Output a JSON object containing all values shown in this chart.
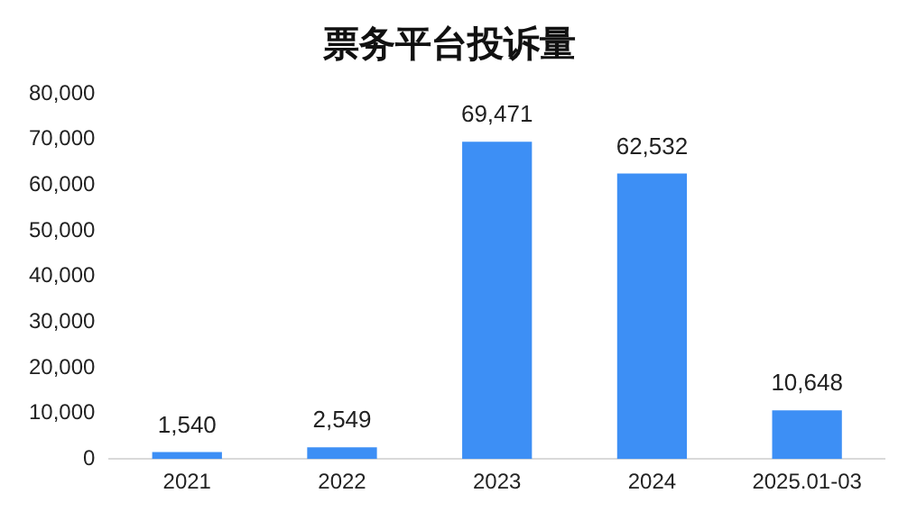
{
  "chart_data": {
    "type": "bar",
    "title": "票务平台投诉量",
    "categories": [
      "2021",
      "2022",
      "2023",
      "2024",
      "2025.01-03"
    ],
    "values": [
      1540,
      2549,
      69471,
      62532,
      10648
    ],
    "color": "#3d8ff5",
    "value_labels": [
      "1,540",
      "2,549",
      "69,471",
      "62,532",
      "10,648"
    ],
    "ylim": [
      0,
      80000
    ],
    "yticks": [
      0,
      {
        "value": 10000,
        "label": "10,000"
      },
      {
        "value": 20000,
        "label": "20,000"
      },
      {
        "value": 30000,
        "label": "30,000"
      },
      {
        "value": 40000,
        "label": "40,000"
      },
      {
        "value": 50000,
        "label": "50,000"
      },
      {
        "value": 60000,
        "label": "60,000"
      },
      {
        "value": 70000,
        "label": "70,000"
      },
      {
        "value": 80000,
        "label": "80,000"
      }
    ],
    "grid": false,
    "legend": false
  }
}
